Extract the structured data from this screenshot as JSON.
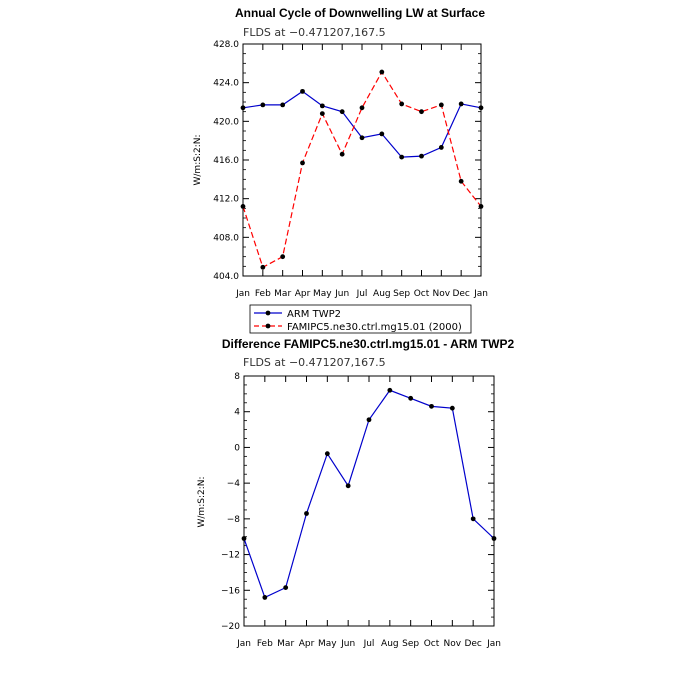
{
  "chart_data": [
    {
      "type": "line",
      "title": "Annual Cycle of Downwelling LW at Surface",
      "subtitle": "FLDS at −0.471207,167.5",
      "ylabel": "W/m:S:2:N:",
      "ylim": [
        404.0,
        428.0
      ],
      "yticks": [
        "404.0",
        "408.0",
        "412.0",
        "416.0",
        "420.0",
        "424.0",
        "428.0"
      ],
      "categories": [
        "Jan",
        "Feb",
        "Mar",
        "Apr",
        "May",
        "Jun",
        "Jul",
        "Aug",
        "Sep",
        "Oct",
        "Nov",
        "Dec",
        "Jan"
      ],
      "series": [
        {
          "name": "ARM TWP2",
          "color": "#0000cc",
          "dash": "solid",
          "values": [
            421.4,
            421.7,
            421.7,
            423.1,
            421.6,
            421.0,
            418.3,
            418.7,
            416.3,
            416.4,
            417.3,
            421.8,
            421.4
          ]
        },
        {
          "name": "FAMIPC5.ne30.ctrl.mg15.01 (2000)",
          "color": "#ff0000",
          "dash": "dashed",
          "values": [
            411.2,
            404.9,
            406.0,
            415.7,
            420.8,
            416.6,
            421.4,
            425.1,
            421.8,
            421.0,
            421.7,
            413.8,
            411.2
          ]
        }
      ],
      "legend": "bottom"
    },
    {
      "type": "line",
      "title": "Difference FAMIPC5.ne30.ctrl.mg15.01 - ARM TWP2",
      "subtitle": "FLDS at −0.471207,167.5",
      "ylabel": "W/m:S:2:N:",
      "ylim": [
        -20,
        8
      ],
      "yticks": [
        "−20",
        "−16",
        "−12",
        "−8",
        "−4",
        "0",
        "4",
        "8"
      ],
      "categories": [
        "Jan",
        "Feb",
        "Mar",
        "Apr",
        "May",
        "Jun",
        "Jul",
        "Aug",
        "Sep",
        "Oct",
        "Nov",
        "Dec",
        "Jan"
      ],
      "series": [
        {
          "color": "#0000cc",
          "dash": "solid",
          "values": [
            -10.2,
            -16.8,
            -15.7,
            -7.4,
            -0.7,
            -4.3,
            3.1,
            6.4,
            5.5,
            4.6,
            4.4,
            -8.0,
            -10.2
          ]
        }
      ]
    }
  ]
}
